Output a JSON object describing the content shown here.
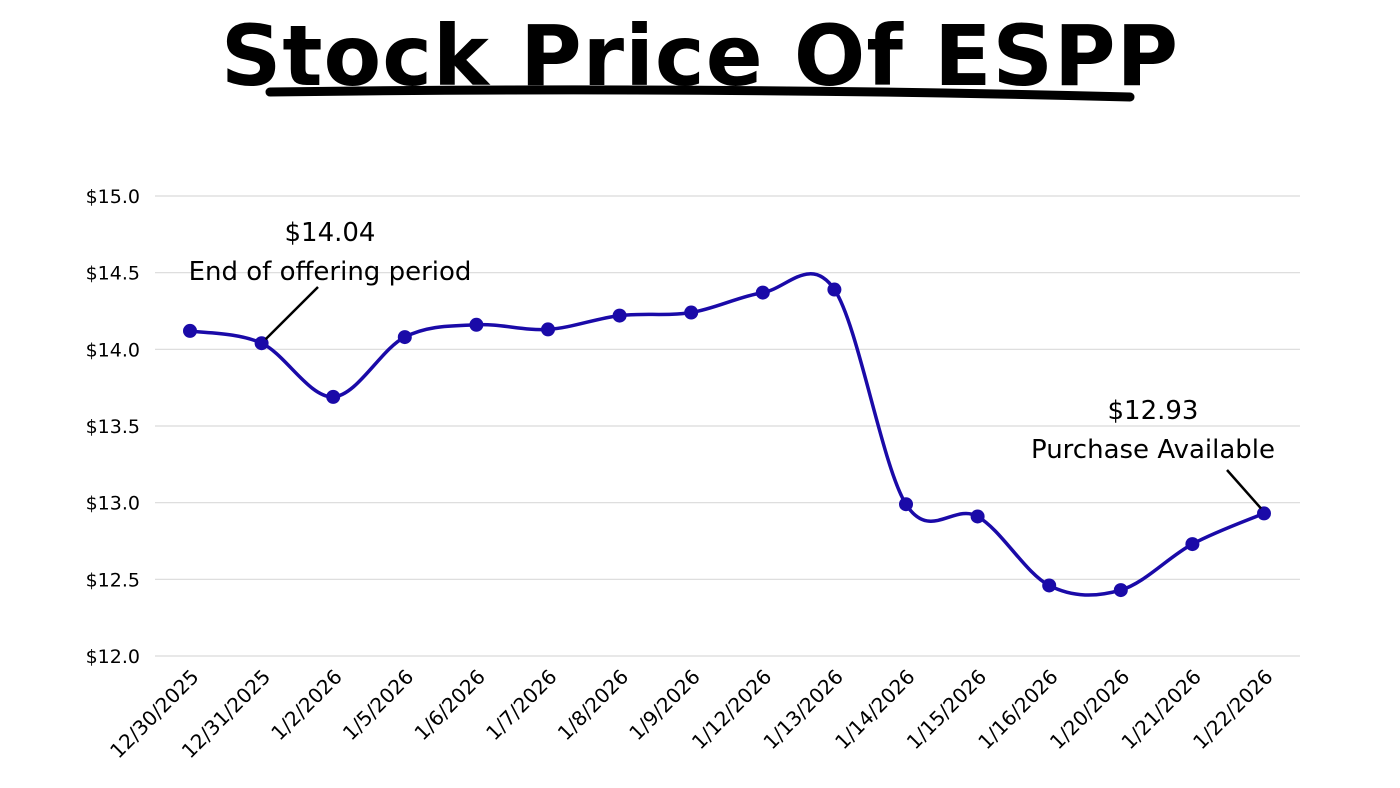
{
  "chart_data": {
    "type": "line",
    "title": "Stock Price Of ESPP",
    "xlabel": "",
    "ylabel": "",
    "ylim": [
      12.0,
      15.0
    ],
    "yticks": [
      "$12.0",
      "$12.5",
      "$13.0",
      "$13.5",
      "$14.0",
      "$14.5",
      "$15.0"
    ],
    "grid": true,
    "legend": "none",
    "categories": [
      "12/30/2025",
      "12/31/2025",
      "1/2/2026",
      "1/5/2026",
      "1/6/2026",
      "1/7/2026",
      "1/8/2026",
      "1/9/2026",
      "1/12/2026",
      "1/13/2026",
      "1/14/2026",
      "1/15/2026",
      "1/16/2026",
      "1/20/2026",
      "1/21/2026",
      "1/22/2026"
    ],
    "series": [
      {
        "values": [
          14.12,
          14.04,
          13.69,
          14.08,
          14.16,
          14.13,
          14.22,
          14.24,
          14.37,
          14.39,
          12.99,
          12.91,
          12.46,
          12.43,
          12.73,
          12.93
        ]
      }
    ],
    "annotations": [
      {
        "value_label": "$14.04",
        "text": "End of offering period",
        "category": "12/31/2025"
      },
      {
        "value_label": "$12.93",
        "text": "Purchase Available",
        "category": "1/22/2026"
      }
    ],
    "colors": {
      "line": "#1a0aa8",
      "grid": "#d9d9d9",
      "text": "#000000"
    }
  }
}
